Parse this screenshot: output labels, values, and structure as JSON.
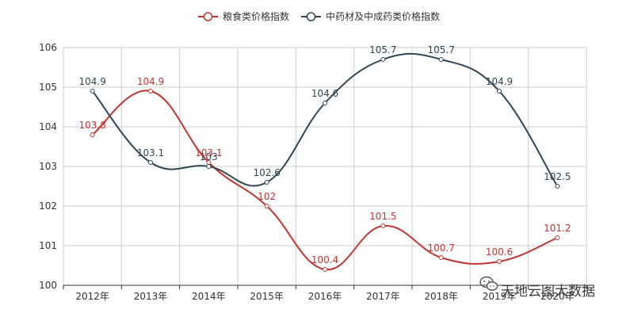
{
  "chart_data": {
    "type": "line",
    "categories": [
      "2012年",
      "2013年",
      "2014年",
      "2015年",
      "2016年",
      "2017年",
      "2018年",
      "2019年",
      "2020年"
    ],
    "series": [
      {
        "name": "粮食类价格指数",
        "color": "#c23531",
        "values": [
          103.8,
          104.9,
          103.1,
          102,
          100.4,
          101.5,
          100.7,
          100.6,
          101.2
        ]
      },
      {
        "name": "中药材及中成药类价格指数",
        "color": "#2f4554",
        "values": [
          104.9,
          103.1,
          103,
          102.6,
          104.6,
          105.7,
          105.7,
          104.9,
          102.5
        ]
      }
    ],
    "ylim": [
      100,
      106
    ],
    "yticks": [
      100,
      101,
      102,
      103,
      104,
      105,
      106
    ],
    "xlabel": "",
    "ylabel": "",
    "smooth": true,
    "grid": true,
    "legend_position": "top-center"
  },
  "watermark": {
    "text": "天地云图大数据",
    "icon": "wechat-icon"
  }
}
